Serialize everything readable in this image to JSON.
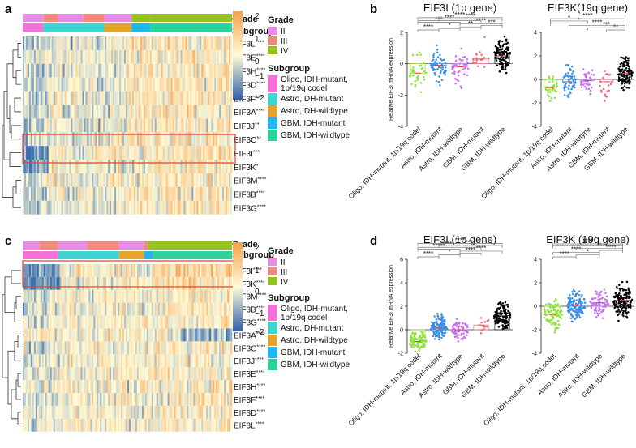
{
  "panel_labels": {
    "a": "a",
    "b": "b",
    "c": "c",
    "d": "d"
  },
  "colors": {
    "grade": {
      "II": "#e58ce6",
      "III": "#f08a7a",
      "IV": "#96c21f"
    },
    "subgroup": [
      "#f472d8",
      "#3fd4d4",
      "#e6a52a",
      "#21b6ee",
      "#2fd19a"
    ],
    "heat_low": "#3a6fb0",
    "heat_mid": "#fffbd8",
    "heat_high": "#f59a46",
    "significance_bracket": "#777777"
  },
  "legend": {
    "grade_title": "Grade",
    "subgroup_title": "Subgroup",
    "grade_items": [
      "II",
      "III",
      "IV"
    ],
    "subgroup_items": [
      [
        "Oligo, IDH-mutant,",
        "1p/19q codel"
      ],
      [
        "Astro,IDH-mutant"
      ],
      [
        "Astro,IDH-wildtype"
      ],
      [
        "GBM, IDH-mutant"
      ],
      [
        "GBM, IDH-wildtype"
      ]
    ],
    "colorbar_ticks": [
      "2",
      "1",
      "0",
      "−1",
      "−2"
    ]
  },
  "heatmap_a": {
    "annotation_labels": [
      "Grade",
      "Subgroup"
    ],
    "genes": [
      {
        "name": "EIF3L",
        "stars": "****"
      },
      {
        "name": "EIF3E",
        "stars": "****"
      },
      {
        "name": "EIF3H",
        "stars": "****"
      },
      {
        "name": "EIF3D",
        "stars": "****"
      },
      {
        "name": "EIF3F",
        "stars": "****"
      },
      {
        "name": "EIF3A",
        "stars": "****"
      },
      {
        "name": "EIF3J",
        "stars": "**"
      },
      {
        "name": "EIF3C",
        "stars": "**"
      },
      {
        "name": "EIF3I",
        "stars": "***"
      },
      {
        "name": "EIF3K",
        "stars": "*"
      },
      {
        "name": "EIF3M",
        "stars": "****"
      },
      {
        "name": "EIF3B",
        "stars": "****"
      },
      {
        "name": "EIF3G",
        "stars": "****"
      }
    ]
  },
  "heatmap_c": {
    "annotation_labels": [
      "Grade",
      "Subgroup"
    ],
    "genes": [
      {
        "name": "EIF3I",
        "stars": "****"
      },
      {
        "name": "EIF3K",
        "stars": "****"
      },
      {
        "name": "EIF3M",
        "stars": "****"
      },
      {
        "name": "EIF3B",
        "stars": "****"
      },
      {
        "name": "EIF3G",
        "stars": "****"
      },
      {
        "name": "EIF3A",
        "stars": "****"
      },
      {
        "name": "EIF3C",
        "stars": "****"
      },
      {
        "name": "EIF3J",
        "stars": "****"
      },
      {
        "name": "EIF3E",
        "stars": "****"
      },
      {
        "name": "EIF3H",
        "stars": "****"
      },
      {
        "name": "EIF3F",
        "stars": "****"
      },
      {
        "name": "EIF3D",
        "stars": "****"
      },
      {
        "name": "EIF3L",
        "stars": "****"
      }
    ]
  },
  "chart_data": [
    {
      "panel": "b-left",
      "type": "scatter",
      "title": "EIF3I (1p gene)",
      "ylabel": "Relative EIF3I mRNA expression",
      "xlabel": "",
      "ylim": [
        -4,
        2
      ],
      "yticks": [
        2,
        0,
        -2,
        -4
      ],
      "categories": [
        "Oligo, IDH-mutant, 1p/19q codel",
        "Astro, IDH-mutant",
        "Astro, IDH-wildtype",
        "GBM, IDH-mutant",
        "GBM, IDH-wildtype"
      ],
      "means": [
        -0.6,
        -0.1,
        -0.2,
        0.3,
        0.5
      ],
      "spreads": [
        0.8,
        0.7,
        0.8,
        0.7,
        0.7
      ],
      "counts": [
        35,
        60,
        40,
        20,
        110
      ],
      "point_colors": [
        "#8de23c",
        "#3a8ee6",
        "#c86ff0",
        "#f06a86",
        "#000000"
      ],
      "brackets": [
        [
          "0",
          "1",
          "****"
        ],
        [
          "1",
          "2",
          "*"
        ],
        [
          "2",
          "3",
          "**"
        ],
        [
          "3",
          "4",
          "***"
        ],
        [
          "2",
          "4",
          "****"
        ],
        [
          "0",
          "2",
          "***"
        ],
        [
          "0",
          "3",
          "****"
        ],
        [
          "1",
          "4",
          "****"
        ],
        [
          "0",
          "4",
          "****"
        ]
      ]
    },
    {
      "panel": "b-right",
      "type": "scatter",
      "title": "EIF3K(19q gene)",
      "ylabel": "",
      "xlabel": "",
      "ylim": [
        -4,
        4
      ],
      "yticks": [
        4,
        2,
        0,
        -2,
        -4
      ],
      "categories": [
        "Oligo, IDH-mutant, 1p/19q codel",
        "Astro, IDH-mutant",
        "Astro, IDH-wildtype",
        "GBM, IDH-mutant",
        "GBM, IDH-wildtype"
      ],
      "means": [
        -0.7,
        -0.2,
        -0.1,
        -0.2,
        0.5
      ],
      "spreads": [
        0.7,
        0.8,
        0.7,
        0.8,
        0.9
      ],
      "counts": [
        35,
        60,
        40,
        20,
        110
      ],
      "point_colors": [
        "#8de23c",
        "#3a8ee6",
        "#c86ff0",
        "#f06a86",
        "#000000"
      ],
      "brackets": [
        [
          "3",
          "4",
          "**"
        ],
        [
          "2",
          "4",
          "***"
        ],
        [
          "1",
          "4",
          "****"
        ],
        [
          "0",
          "3",
          "*"
        ],
        [
          "0",
          "2",
          "*"
        ],
        [
          "0",
          "4",
          "****"
        ]
      ]
    },
    {
      "panel": "d-left",
      "type": "scatter",
      "title": "EIF3I (1p gene)",
      "ylabel": "Relative EIF3I mRNA expression",
      "xlabel": "",
      "ylim": [
        -2,
        6
      ],
      "yticks": [
        6,
        4,
        2,
        0,
        -2
      ],
      "categories": [
        "Oligo, IDH-mutant, 1p/19q codel",
        "Astro, IDH-mutant",
        "Astro, IDH-wildtype",
        "GBM, IDH-mutant",
        "GBM, IDH-wildtype"
      ],
      "means": [
        -1.0,
        0.2,
        0.0,
        0.4,
        1.2
      ],
      "spreads": [
        0.6,
        0.7,
        0.6,
        0.8,
        0.8
      ],
      "counts": [
        90,
        130,
        70,
        12,
        130
      ],
      "point_colors": [
        "#8de23c",
        "#3a8ee6",
        "#c86ff0",
        "#f06a86",
        "#000000"
      ],
      "brackets": [
        [
          "0",
          "1",
          "****"
        ],
        [
          "1",
          "2",
          "*"
        ],
        [
          "2",
          "3",
          "****"
        ],
        [
          "2",
          "4",
          "****"
        ],
        [
          "0",
          "2",
          "*****"
        ],
        [
          "0",
          "3",
          "****"
        ],
        [
          "1",
          "4",
          "****"
        ],
        [
          "0",
          "4",
          "****"
        ]
      ]
    },
    {
      "panel": "d-right",
      "type": "scatter",
      "title": "EIF3K (19q gene)",
      "ylabel": "",
      "xlabel": "",
      "ylim": [
        -4,
        4
      ],
      "yticks": [
        4,
        2,
        0,
        -2,
        -4
      ],
      "categories": [
        "Oligo, IDH-mutant, 1p/19q codel",
        "Astro, IDH-mutant",
        "Astro, IDH-wildtype",
        "GBM, IDH-wildtype"
      ],
      "means": [
        -0.7,
        0.1,
        0.3,
        0.5
      ],
      "spreads": [
        0.8,
        0.8,
        0.7,
        0.9
      ],
      "counts": [
        90,
        130,
        70,
        130
      ],
      "point_colors": [
        "#8de23c",
        "#3a8ee6",
        "#c86ff0",
        "#000000"
      ],
      "extra_group_colors": [
        "#f06a86"
      ],
      "brackets": [
        [
          "0",
          "1",
          "****"
        ],
        [
          "1",
          "2",
          "*"
        ],
        [
          "0",
          "2",
          "****"
        ],
        [
          "2",
          "3",
          "****"
        ],
        [
          "1",
          "3",
          "**"
        ],
        [
          "0",
          "3",
          "****"
        ],
        [
          "0",
          "3",
          "****"
        ]
      ]
    }
  ]
}
